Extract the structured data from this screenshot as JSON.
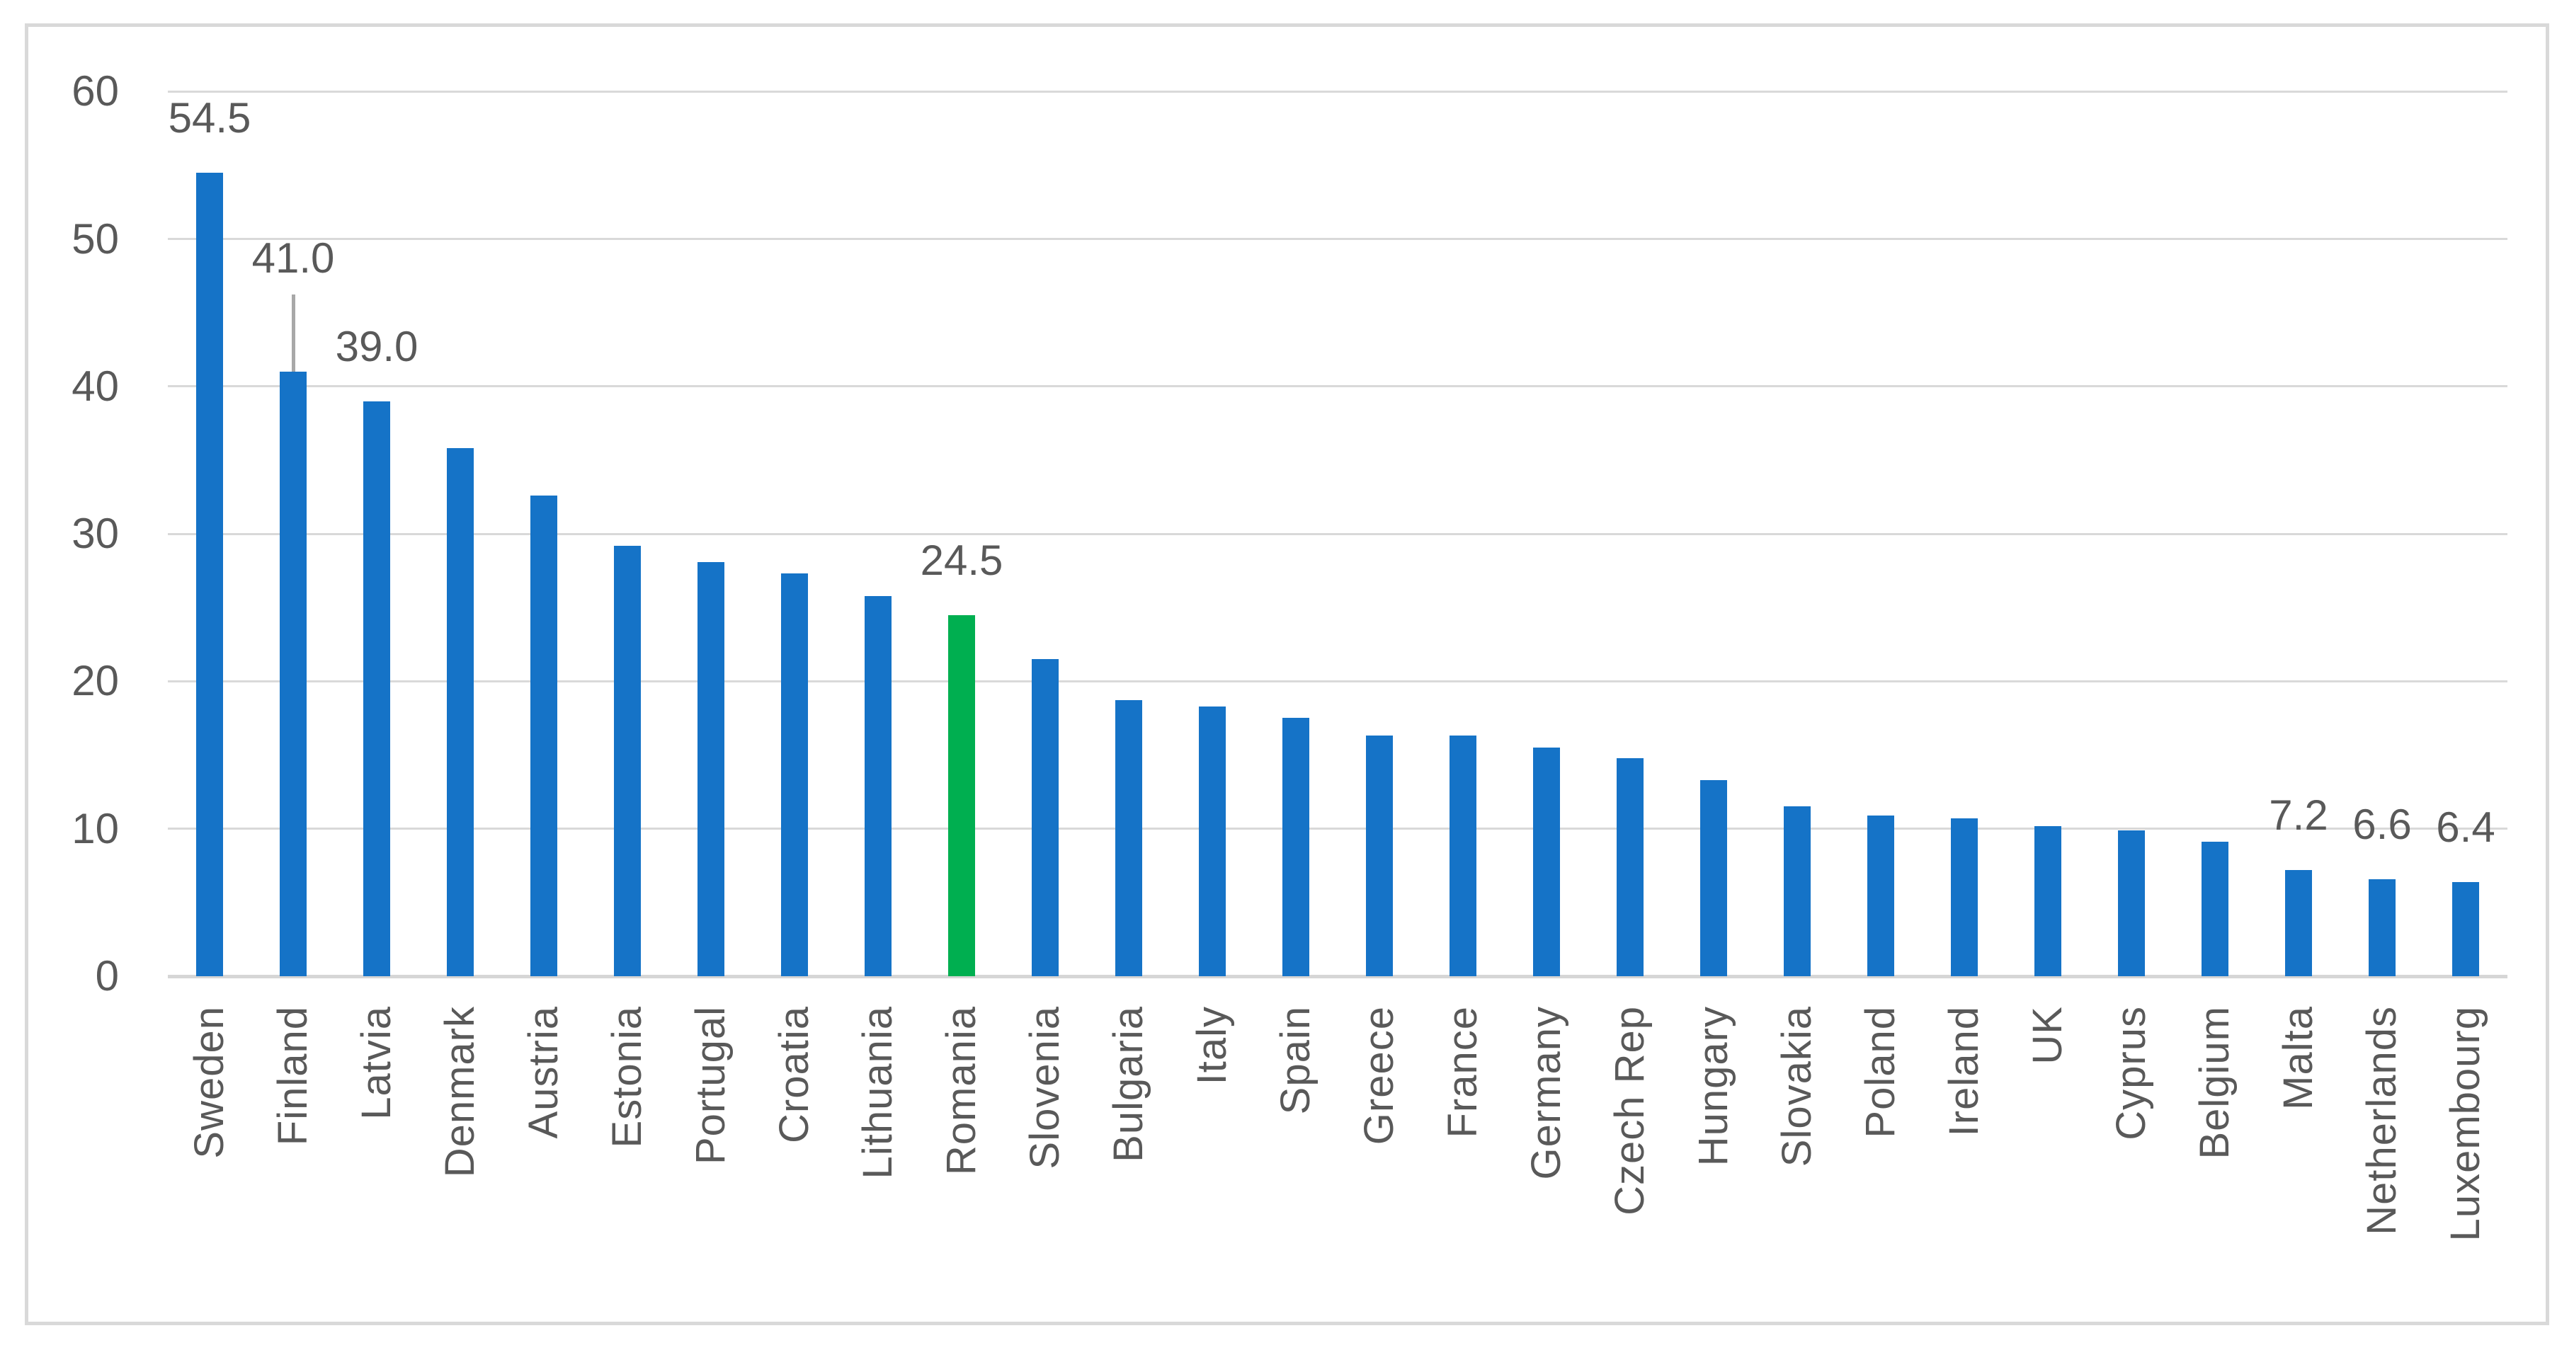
{
  "chart_data": {
    "type": "bar",
    "categories": [
      "Sweden",
      "Finland",
      "Latvia",
      "Denmark",
      "Austria",
      "Estonia",
      "Portugal",
      "Croatia",
      "Lithuania",
      "Romania",
      "Slovenia",
      "Bulgaria",
      "Italy",
      "Spain",
      "Greece",
      "France",
      "Germany",
      "Czech Rep",
      "Hungary",
      "Slovakia",
      "Poland",
      "Ireland",
      "UK",
      "Cyprus",
      "Belgium",
      "Malta",
      "Netherlands",
      "Luxembourg"
    ],
    "values": [
      54.5,
      41.0,
      39.0,
      35.8,
      32.6,
      29.2,
      28.1,
      27.3,
      25.8,
      24.5,
      21.5,
      18.7,
      18.3,
      17.5,
      16.3,
      16.3,
      15.5,
      14.8,
      13.3,
      11.5,
      10.9,
      10.7,
      10.2,
      9.9,
      9.1,
      7.2,
      6.6,
      6.4
    ],
    "data_labels": [
      {
        "category": "Sweden",
        "text": "54.5",
        "leader_line": false
      },
      {
        "category": "Finland",
        "text": "41.0",
        "leader_line": true
      },
      {
        "category": "Latvia",
        "text": "39.0",
        "leader_line": false
      },
      {
        "category": "Romania",
        "text": "24.5",
        "leader_line": false
      },
      {
        "category": "Malta",
        "text": "7.2",
        "leader_line": false
      },
      {
        "category": "Netherlands",
        "text": "6.6",
        "leader_line": false
      },
      {
        "category": "Luxembourg",
        "text": "6.4",
        "leader_line": false
      }
    ],
    "highlight_category": "Romania",
    "yticks": [
      0,
      10,
      20,
      30,
      40,
      50,
      60
    ],
    "ylim": [
      0,
      60
    ],
    "grid": true,
    "legend": "none",
    "xlabel": "",
    "ylabel": ""
  },
  "colors": {
    "bar_default": "#1573C7",
    "bar_highlight": "#00AF50",
    "gridline": "#D9D9D9",
    "axis_baseline": "#D6D6D6",
    "text": "#595959",
    "leader_line": "#A8A8A8",
    "frame_border": "#D9D9D9",
    "background": "#FFFFFF"
  }
}
